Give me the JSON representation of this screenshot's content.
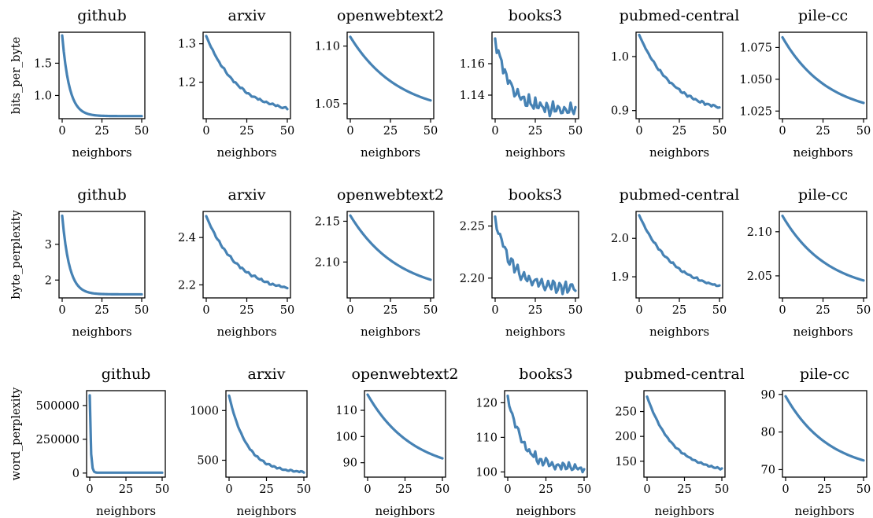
{
  "line_color": "#4682b4",
  "chart_data": [
    {
      "type": "line",
      "title": "github",
      "xlabel": "neighbors",
      "ylabel": "bits_per_byte",
      "xlim": [
        0,
        50
      ],
      "ylim": [
        0.64,
        1.98
      ],
      "xticks": [
        0,
        25,
        50
      ],
      "yticks": [
        1.0,
        1.5
      ],
      "ytick_labels": [
        "1.0",
        "1.5"
      ],
      "shape": "decay",
      "y0": 1.93,
      "yend": 0.68,
      "k": 4.5
    },
    {
      "type": "line",
      "title": "arxiv",
      "xlabel": "neighbors",
      "ylabel": "",
      "xlim": [
        0,
        50
      ],
      "ylim": [
        1.105,
        1.33
      ],
      "xticks": [
        0,
        25,
        50
      ],
      "yticks": [
        1.2,
        1.3
      ],
      "ytick_labels": [
        "1.2",
        "1.3"
      ],
      "shape": "decay",
      "y0": 1.32,
      "yend": 1.115,
      "k": 20,
      "noise": 0.002
    },
    {
      "type": "line",
      "title": "openwebtext2",
      "xlabel": "neighbors",
      "ylabel": "",
      "xlim": [
        0,
        50
      ],
      "ylim": [
        1.037,
        1.112
      ],
      "xticks": [
        0,
        25,
        50
      ],
      "yticks": [
        1.05,
        1.1
      ],
      "ytick_labels": [
        "1.05",
        "1.10"
      ],
      "shape": "decay",
      "y0": 1.108,
      "yend": 1.04,
      "k": 30
    },
    {
      "type": "line",
      "title": "books3",
      "xlabel": "neighbors",
      "ylabel": "",
      "xlim": [
        0,
        50
      ],
      "ylim": [
        1.125,
        1.18
      ],
      "xticks": [
        0,
        25,
        50
      ],
      "yticks": [
        1.14,
        1.16
      ],
      "ytick_labels": [
        "1.14",
        "1.16"
      ],
      "shape": "noisy",
      "y0": 1.176,
      "yend": 1.13,
      "k": 10,
      "noise": 0.003
    },
    {
      "type": "line",
      "title": "pubmed-central",
      "xlabel": "neighbors",
      "ylabel": "",
      "xlim": [
        0,
        50
      ],
      "ylim": [
        0.885,
        1.045
      ],
      "xticks": [
        0,
        25,
        50
      ],
      "yticks": [
        0.9,
        1.0
      ],
      "ytick_labels": [
        "0.9",
        "1.0"
      ],
      "shape": "decay",
      "y0": 1.04,
      "yend": 0.89,
      "k": 22,
      "noise": 0.0015
    },
    {
      "type": "line",
      "title": "pile-cc",
      "xlabel": "neighbors",
      "ylabel": "",
      "xlim": [
        0,
        50
      ],
      "ylim": [
        1.019,
        1.087
      ],
      "xticks": [
        0,
        25,
        50
      ],
      "yticks": [
        1.025,
        1.05,
        1.075
      ],
      "ytick_labels": [
        "1.025",
        "1.050",
        "1.075"
      ],
      "shape": "decay",
      "y0": 1.083,
      "yend": 1.021,
      "k": 28
    },
    {
      "type": "line",
      "title": "github",
      "xlabel": "neighbors",
      "ylabel": "byte_perplexity",
      "xlim": [
        0,
        50
      ],
      "ylim": [
        1.5,
        3.92
      ],
      "xticks": [
        0,
        25,
        50
      ],
      "yticks": [
        2,
        3
      ],
      "ytick_labels": [
        "2",
        "3"
      ],
      "shape": "decay",
      "y0": 3.8,
      "yend": 1.6,
      "k": 4.5
    },
    {
      "type": "line",
      "title": "arxiv",
      "xlabel": "neighbors",
      "ylabel": "",
      "xlim": [
        0,
        50
      ],
      "ylim": [
        2.145,
        2.51
      ],
      "xticks": [
        0,
        25,
        50
      ],
      "yticks": [
        2.2,
        2.4
      ],
      "ytick_labels": [
        "2.2",
        "2.4"
      ],
      "shape": "decay",
      "y0": 2.49,
      "yend": 2.16,
      "k": 20,
      "noise": 0.003
    },
    {
      "type": "line",
      "title": "openwebtext2",
      "xlabel": "neighbors",
      "ylabel": "",
      "xlim": [
        0,
        50
      ],
      "ylim": [
        2.056,
        2.162
      ],
      "xticks": [
        0,
        25,
        50
      ],
      "yticks": [
        2.1,
        2.15
      ],
      "ytick_labels": [
        "2.10",
        "2.15"
      ],
      "shape": "decay",
      "y0": 2.157,
      "yend": 2.06,
      "k": 30
    },
    {
      "type": "line",
      "title": "books3",
      "xlabel": "neighbors",
      "ylabel": "",
      "xlim": [
        0,
        50
      ],
      "ylim": [
        2.181,
        2.264
      ],
      "xticks": [
        0,
        25,
        50
      ],
      "yticks": [
        2.2,
        2.25
      ],
      "ytick_labels": [
        "2.20",
        "2.25"
      ],
      "shape": "noisy",
      "y0": 2.259,
      "yend": 2.19,
      "k": 10,
      "noise": 0.004
    },
    {
      "type": "line",
      "title": "pubmed-central",
      "xlabel": "neighbors",
      "ylabel": "",
      "xlim": [
        0,
        50
      ],
      "ylim": [
        1.845,
        2.07
      ],
      "xticks": [
        0,
        25,
        50
      ],
      "yticks": [
        1.9,
        2.0
      ],
      "ytick_labels": [
        "1.9",
        "2.0"
      ],
      "shape": "decay",
      "y0": 2.06,
      "yend": 1.855,
      "k": 22,
      "noise": 0.002
    },
    {
      "type": "line",
      "title": "pile-cc",
      "xlabel": "neighbors",
      "ylabel": "",
      "xlim": [
        0,
        50
      ],
      "ylim": [
        2.025,
        2.123
      ],
      "xticks": [
        0,
        25,
        50
      ],
      "yticks": [
        2.05,
        2.1
      ],
      "ytick_labels": [
        "2.05",
        "2.10"
      ],
      "shape": "decay",
      "y0": 2.118,
      "yend": 2.03,
      "k": 28
    },
    {
      "type": "line",
      "title": "github",
      "xlabel": "neighbors",
      "ylabel": "word_perplexity",
      "xlim": [
        0,
        50
      ],
      "ylim": [
        -30000,
        610000
      ],
      "xticks": [
        0,
        25,
        50
      ],
      "yticks": [
        0,
        250000,
        500000
      ],
      "ytick_labels": [
        "0",
        "250000",
        "500000"
      ],
      "shape": "decay",
      "y0": 575000,
      "yend": 3000,
      "k": 0.7
    },
    {
      "type": "line",
      "title": "arxiv",
      "xlabel": "neighbors",
      "ylabel": "",
      "xlim": [
        0,
        50
      ],
      "ylim": [
        330,
        1200
      ],
      "xticks": [
        0,
        25,
        50
      ],
      "yticks": [
        500,
        1000
      ],
      "ytick_labels": [
        "500",
        "1000"
      ],
      "shape": "decay",
      "y0": 1150,
      "yend": 370,
      "k": 12,
      "noise": 5
    },
    {
      "type": "line",
      "title": "openwebtext2",
      "xlabel": "neighbors",
      "ylabel": "",
      "xlim": [
        0,
        50
      ],
      "ylim": [
        84.5,
        117.5
      ],
      "xticks": [
        0,
        25,
        50
      ],
      "yticks": [
        90,
        100,
        110
      ],
      "ytick_labels": [
        "90",
        "100",
        "110"
      ],
      "shape": "decay",
      "y0": 116,
      "yend": 86,
      "k": 30
    },
    {
      "type": "line",
      "title": "books3",
      "xlabel": "neighbors",
      "ylabel": "",
      "xlim": [
        0,
        50
      ],
      "ylim": [
        98.5,
        123.5
      ],
      "xticks": [
        0,
        25,
        50
      ],
      "yticks": [
        100,
        110,
        120
      ],
      "ytick_labels": [
        "100",
        "110",
        "120"
      ],
      "shape": "noisy",
      "y0": 122,
      "yend": 101,
      "k": 10,
      "noise": 0.9
    },
    {
      "type": "line",
      "title": "pubmed-central",
      "xlabel": "neighbors",
      "ylabel": "",
      "xlim": [
        0,
        50
      ],
      "ylim": [
        118,
        292
      ],
      "xticks": [
        0,
        25,
        50
      ],
      "yticks": [
        150,
        200,
        250
      ],
      "ytick_labels": [
        "150",
        "200",
        "250"
      ],
      "shape": "decay",
      "y0": 280,
      "yend": 125,
      "k": 18,
      "noise": 1
    },
    {
      "type": "line",
      "title": "pile-cc",
      "xlabel": "neighbors",
      "ylabel": "",
      "xlim": [
        0,
        50
      ],
      "ylim": [
        68,
        91
      ],
      "xticks": [
        0,
        25,
        50
      ],
      "yticks": [
        70,
        80,
        90
      ],
      "ytick_labels": [
        "70",
        "80",
        "90"
      ],
      "shape": "decay",
      "y0": 89.5,
      "yend": 69,
      "k": 28
    }
  ]
}
